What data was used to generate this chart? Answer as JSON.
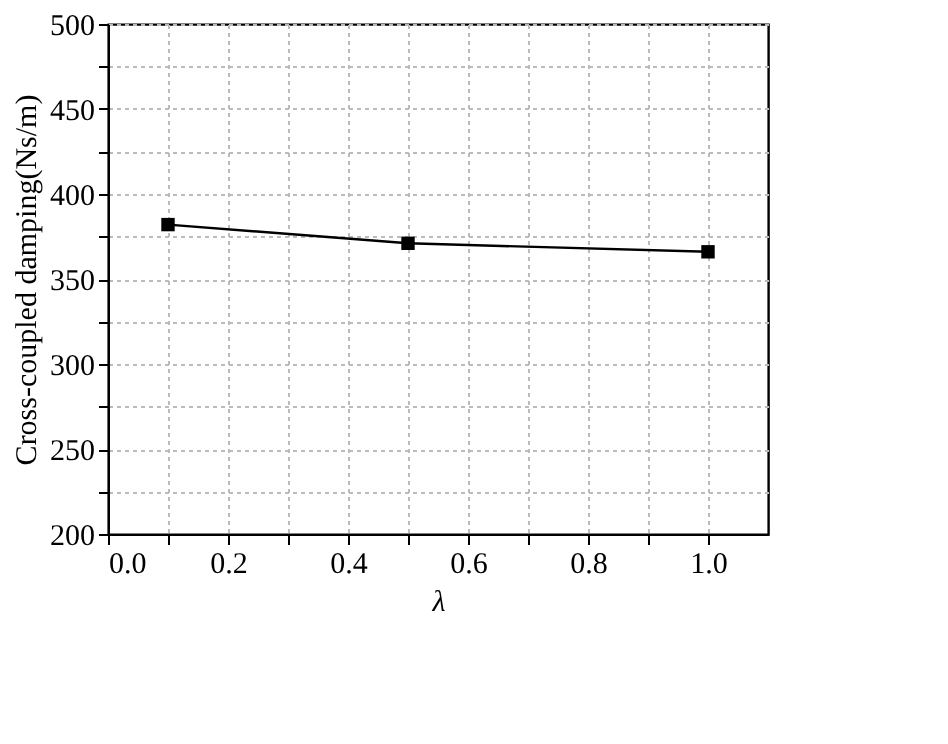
{
  "chart_data": {
    "type": "line",
    "xlabel": "λ",
    "ylabel": "Cross-coupled damping(Ns/m)",
    "x": [
      0.1,
      0.5,
      1.0
    ],
    "series": [
      {
        "color": "#000000",
        "values": [
          382,
          371,
          366
        ]
      }
    ],
    "xlim": [
      0.0,
      1.1
    ],
    "xticks": [
      {
        "value": 0.0,
        "label": "0.0"
      },
      {
        "value": 0.1,
        "label": null
      },
      {
        "value": 0.2,
        "label": "0.2"
      },
      {
        "value": 0.3,
        "label": null
      },
      {
        "value": 0.4,
        "label": "0.4"
      },
      {
        "value": 0.5,
        "label": null
      },
      {
        "value": 0.6,
        "label": "0.6"
      },
      {
        "value": 0.7,
        "label": null
      },
      {
        "value": 0.8,
        "label": "0.8"
      },
      {
        "value": 0.9,
        "label": null
      },
      {
        "value": 1.0,
        "label": "1.0"
      }
    ],
    "ylim": [
      200,
      500
    ],
    "yticks": [
      200,
      {
        "value": 225,
        "label": null
      },
      250,
      {
        "value": 275,
        "label": null
      },
      300,
      {
        "value": 325,
        "label": null
      },
      350,
      {
        "value": 375,
        "label": null
      },
      400,
      {
        "value": 425,
        "label": null
      },
      450,
      {
        "value": 475,
        "label": null
      },
      500
    ],
    "grid": true,
    "marker": "square",
    "line_style": "solid"
  }
}
